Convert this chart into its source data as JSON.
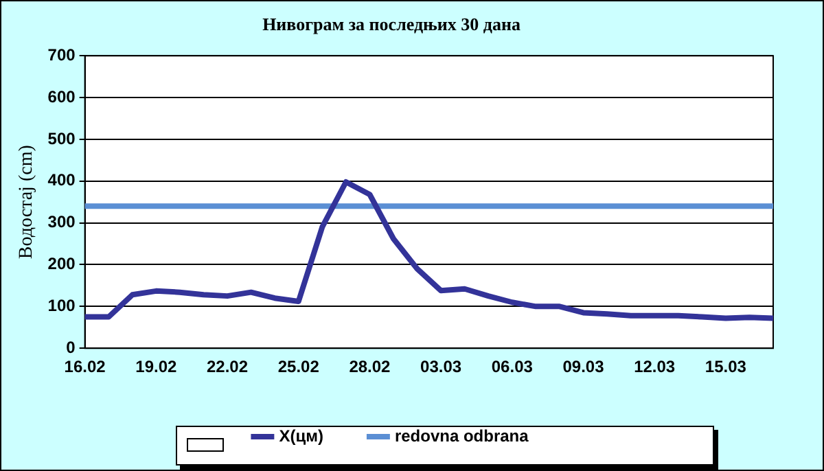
{
  "chart_data": {
    "type": "line",
    "title": "Нивограм за последњих 30 дана",
    "ylabel": "Водостај (cm)",
    "categories": [
      "16.02",
      null,
      null,
      "19.02",
      null,
      null,
      "22.02",
      null,
      null,
      "25.02",
      null,
      null,
      "28.02",
      null,
      null,
      "03.03",
      null,
      null,
      "06.03",
      null,
      null,
      "09.03",
      null,
      null,
      "12.03",
      null,
      null,
      "15.03",
      null,
      null
    ],
    "series": [
      {
        "name": "X(цм)",
        "color": "#333399",
        "values": [
          75,
          75,
          128,
          137,
          134,
          128,
          125,
          134,
          120,
          112,
          290,
          398,
          368,
          262,
          190,
          138,
          142,
          125,
          110,
          100,
          100,
          85,
          82,
          78,
          78,
          78,
          75,
          72,
          74,
          72
        ]
      },
      {
        "name": "redovna odbrana",
        "color": "#5b8fd4",
        "values": [
          340,
          340,
          340,
          340,
          340,
          340,
          340,
          340,
          340,
          340,
          340,
          340,
          340,
          340,
          340,
          340,
          340,
          340,
          340,
          340,
          340,
          340,
          340,
          340,
          340,
          340,
          340,
          340,
          340,
          340
        ]
      }
    ],
    "ylim": [
      0,
      700
    ],
    "yticks": [
      0,
      100,
      200,
      300,
      400,
      500,
      600,
      700
    ],
    "grid": "y",
    "legend": "bottom",
    "marker": "none",
    "line_style": "solid"
  }
}
